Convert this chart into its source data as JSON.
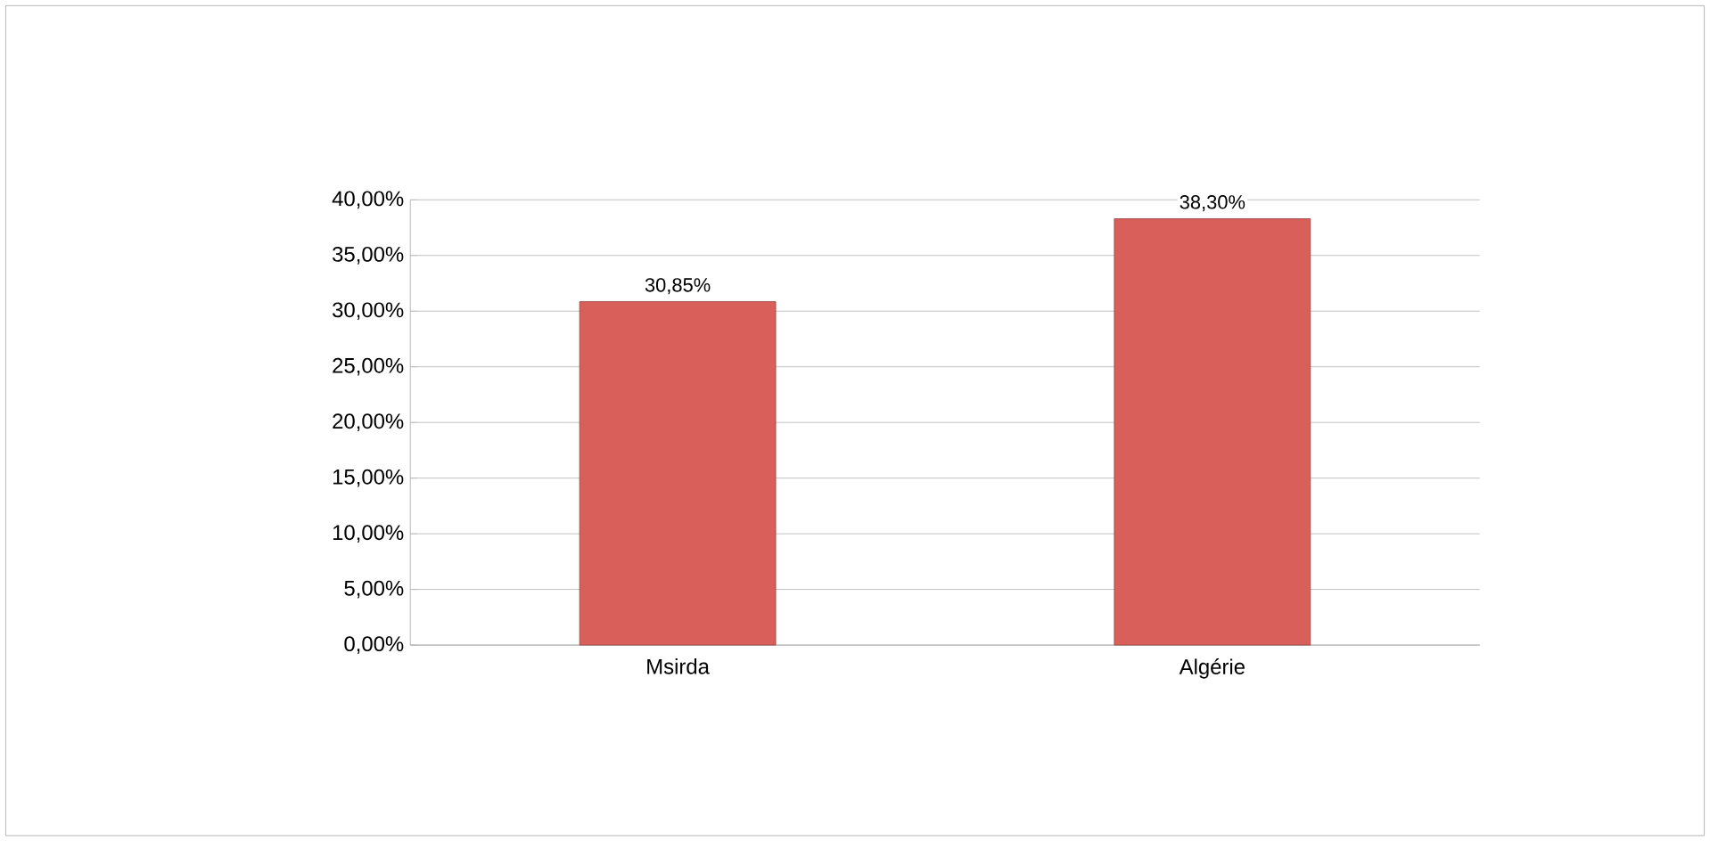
{
  "chart_data": {
    "type": "bar",
    "categories": [
      "Msirda",
      "Algérie"
    ],
    "values": [
      30.85,
      38.3
    ],
    "value_labels": [
      "30,85%",
      "38,30%"
    ],
    "color": "#d9605a",
    "ylim": [
      0,
      40
    ],
    "yticks": [
      {
        "value": 0,
        "label": "0,00%"
      },
      {
        "value": 5,
        "label": "5,00%"
      },
      {
        "value": 10,
        "label": "10,00%"
      },
      {
        "value": 15,
        "label": "15,00%"
      },
      {
        "value": 20,
        "label": "20,00%"
      },
      {
        "value": 25,
        "label": "25,00%"
      },
      {
        "value": 30,
        "label": "30,00%"
      },
      {
        "value": 35,
        "label": "35,00%"
      },
      {
        "value": 40,
        "label": "40,00%"
      }
    ],
    "grid": "y"
  }
}
